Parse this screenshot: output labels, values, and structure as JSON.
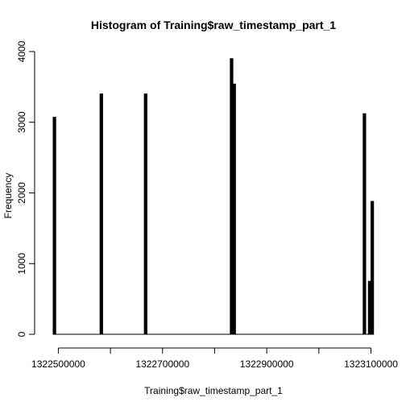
{
  "chart_data": {
    "type": "bar",
    "title": "Histogram of Training$raw_timestamp_part_1",
    "xlabel": "Training$raw_timestamp_part_1",
    "ylabel": "Frequency",
    "xlim": [
      1322480000,
      1323100000
    ],
    "ylim": [
      0,
      4000
    ],
    "x_ticks": [
      1322500000,
      1322600000,
      1322700000,
      1322800000,
      1322900000,
      1323000000,
      1323100000
    ],
    "x_tick_labels": [
      "1322500000",
      "",
      "1322700000",
      "",
      "1322900000",
      "",
      "1323100000"
    ],
    "y_ticks": [
      0,
      1000,
      2000,
      3000,
      4000
    ],
    "y_tick_labels": [
      "0",
      "1000",
      "2000",
      "3000",
      "4000"
    ],
    "bins": [
      {
        "start": 1322490000,
        "end": 1322495000,
        "count": 3070
      },
      {
        "start": 1322580000,
        "end": 1322585000,
        "count": 3400
      },
      {
        "start": 1322660000,
        "end": 1322665000,
        "count": 0
      },
      {
        "start": 1322665000,
        "end": 1322670000,
        "count": 3400
      },
      {
        "start": 1322830000,
        "end": 1322835000,
        "count": 3900
      },
      {
        "start": 1322835000,
        "end": 1322840000,
        "count": 3540
      },
      {
        "start": 1323085000,
        "end": 1323090000,
        "count": 3120
      },
      {
        "start": 1323095000,
        "end": 1323100000,
        "count": 750
      },
      {
        "start": 1323100000,
        "end": 1323105000,
        "count": 1880
      }
    ]
  }
}
